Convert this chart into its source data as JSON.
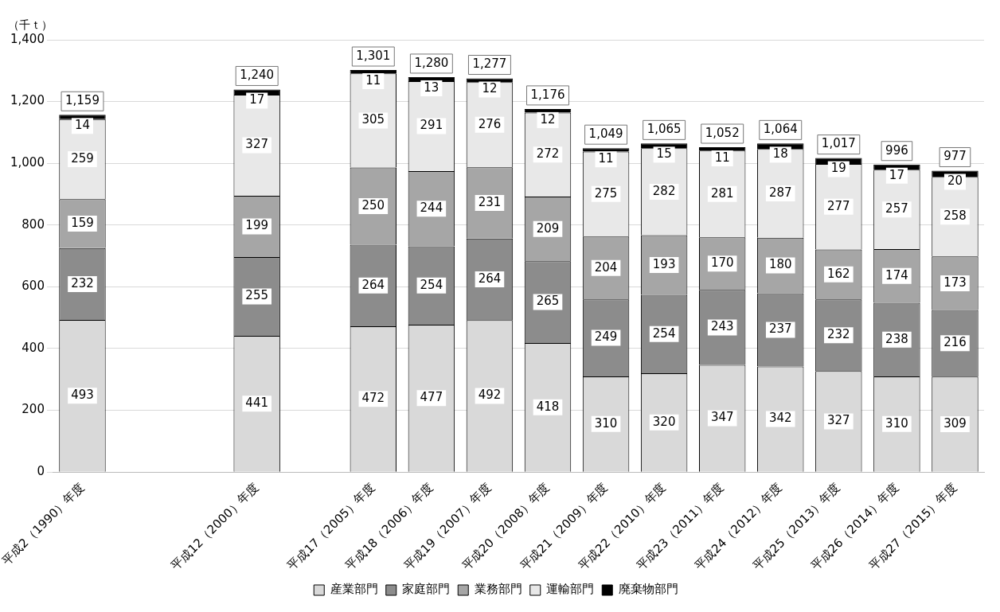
{
  "chart_data": {
    "type": "bar",
    "stacked": true,
    "ylabel": "（千ｔ）",
    "categories": [
      "平成2（1990）年度",
      null,
      null,
      "平成12（2000）年度",
      null,
      "平成17（2005）年度",
      "平成18（2006）年度",
      "平成19（2007）年度",
      "平成20（2008）年度",
      "平成21（2009）年度",
      "平成22（2010）年度",
      "平成23（2011）年度",
      "平成24（2012）年度",
      "平成25（2013）年度",
      "平成26（2014）年度",
      "平成27（2015）年度"
    ],
    "series": [
      {
        "name": "産業部門",
        "color": "#d9d9d9",
        "values": [
          493,
          null,
          null,
          441,
          null,
          472,
          477,
          492,
          418,
          310,
          320,
          347,
          342,
          327,
          310,
          309
        ]
      },
      {
        "name": "家庭部門",
        "color": "#8c8c8c",
        "values": [
          232,
          null,
          null,
          255,
          null,
          264,
          254,
          264,
          265,
          249,
          254,
          243,
          237,
          232,
          238,
          216
        ]
      },
      {
        "name": "業務部門",
        "color": "#a6a6a6",
        "values": [
          159,
          null,
          null,
          199,
          null,
          250,
          244,
          231,
          209,
          204,
          193,
          170,
          180,
          162,
          174,
          173
        ]
      },
      {
        "name": "運輸部門",
        "color": "#e8e8e8",
        "values": [
          259,
          null,
          null,
          327,
          null,
          305,
          291,
          276,
          272,
          275,
          282,
          281,
          287,
          277,
          257,
          258
        ]
      },
      {
        "name": "廃棄物部門",
        "color": "#000000",
        "values": [
          14,
          null,
          null,
          17,
          null,
          11,
          13,
          12,
          12,
          11,
          15,
          11,
          18,
          19,
          17,
          20
        ]
      }
    ],
    "totals": [
      "1,159",
      null,
      null,
      "1,240",
      null,
      "1,301",
      "1,280",
      "1,277",
      "1,176",
      "1,049",
      "1,065",
      "1,052",
      "1,064",
      "1,017",
      "996",
      "977"
    ],
    "data_labels": true,
    "ylim": [
      0,
      1400
    ],
    "yticks": [
      {
        "value": 0,
        "label": "0"
      },
      {
        "value": 200,
        "label": "200"
      },
      {
        "value": 400,
        "label": "400"
      },
      {
        "value": 600,
        "label": "600"
      },
      {
        "value": 800,
        "label": "800"
      },
      {
        "value": 1000,
        "label": "1,000"
      },
      {
        "value": 1200,
        "label": "1,200"
      },
      {
        "value": 1400,
        "label": "1,400"
      }
    ],
    "grid": "y",
    "legend": "bottom"
  }
}
